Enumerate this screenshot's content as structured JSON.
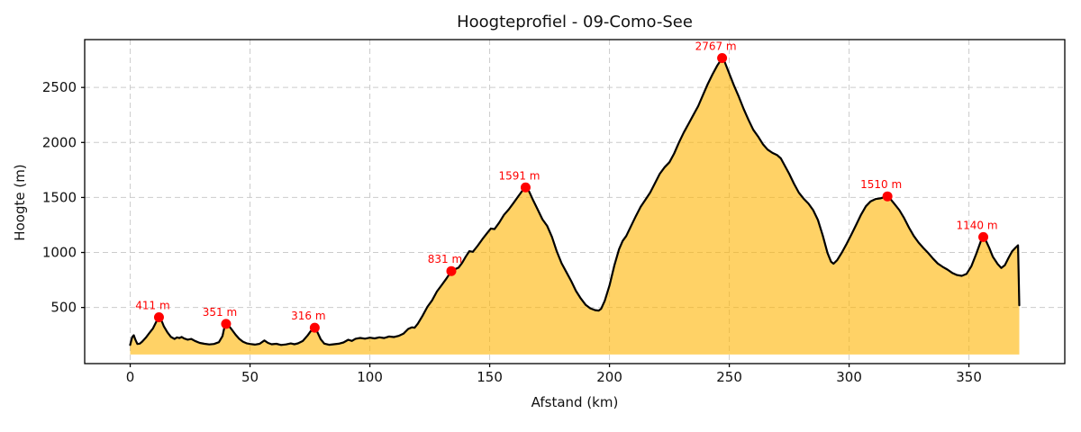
{
  "chart_data": {
    "type": "area",
    "title": "Hoogteprofiel - 09-Como-See",
    "xlabel": "Afstand (km)",
    "ylabel": "Hoogte (m)",
    "xlim": [
      -19,
      390
    ],
    "ylim": [
      -10,
      2935
    ],
    "x_ticks": [
      0,
      50,
      100,
      150,
      200,
      250,
      300,
      350
    ],
    "y_ticks": [
      500,
      1000,
      1500,
      2000,
      2500
    ],
    "grid": true,
    "legend": "none",
    "fill_baseline_m": 73,
    "colors": {
      "line": "#000000",
      "fill": "rgba(255,180,0,0.6)",
      "marker": "#ff0000",
      "peak_label": "#ff0000",
      "grid": "#cccccc",
      "frame": "#000000",
      "tick_text": "#111111"
    },
    "peaks": [
      {
        "km": 12,
        "m": 411,
        "label": "411 m"
      },
      {
        "km": 40,
        "m": 351,
        "label": "351 m"
      },
      {
        "km": 77,
        "m": 316,
        "label": "316 m"
      },
      {
        "km": 134,
        "m": 831,
        "label": "831 m"
      },
      {
        "km": 165,
        "m": 1591,
        "label": "1591 m"
      },
      {
        "km": 247,
        "m": 2767,
        "label": "2767 m"
      },
      {
        "km": 316,
        "m": 1510,
        "label": "1510 m"
      },
      {
        "km": 356,
        "m": 1140,
        "label": "1140 m"
      }
    ],
    "profile": [
      [
        0,
        160
      ],
      [
        0.8,
        230
      ],
      [
        1.5,
        248
      ],
      [
        2.2,
        205
      ],
      [
        3,
        168
      ],
      [
        4,
        172
      ],
      [
        5,
        190
      ],
      [
        6.5,
        225
      ],
      [
        8,
        268
      ],
      [
        9.5,
        310
      ],
      [
        11,
        375
      ],
      [
        12,
        411
      ],
      [
        13,
        385
      ],
      [
        14,
        330
      ],
      [
        15.5,
        275
      ],
      [
        17,
        232
      ],
      [
        18.5,
        214
      ],
      [
        19.5,
        228
      ],
      [
        20.5,
        222
      ],
      [
        21.5,
        232
      ],
      [
        22.5,
        218
      ],
      [
        24,
        208
      ],
      [
        25.5,
        214
      ],
      [
        27,
        196
      ],
      [
        29,
        178
      ],
      [
        31,
        170
      ],
      [
        33,
        164
      ],
      [
        35,
        168
      ],
      [
        37,
        185
      ],
      [
        38.5,
        240
      ],
      [
        39.4,
        330
      ],
      [
        40,
        351
      ],
      [
        41,
        338
      ],
      [
        42.5,
        296
      ],
      [
        44,
        252
      ],
      [
        45.5,
        215
      ],
      [
        47,
        190
      ],
      [
        48.5,
        175
      ],
      [
        50,
        168
      ],
      [
        52,
        163
      ],
      [
        54,
        170
      ],
      [
        56,
        200
      ],
      [
        57.5,
        178
      ],
      [
        59,
        166
      ],
      [
        61,
        170
      ],
      [
        63,
        159
      ],
      [
        65,
        164
      ],
      [
        67,
        173
      ],
      [
        68.5,
        166
      ],
      [
        70,
        174
      ],
      [
        72,
        195
      ],
      [
        74,
        245
      ],
      [
        75.5,
        290
      ],
      [
        77,
        316
      ],
      [
        78,
        282
      ],
      [
        79.5,
        212
      ],
      [
        81,
        172
      ],
      [
        83,
        161
      ],
      [
        85,
        166
      ],
      [
        87,
        171
      ],
      [
        89,
        182
      ],
      [
        91,
        207
      ],
      [
        92.5,
        196
      ],
      [
        94,
        216
      ],
      [
        96,
        223
      ],
      [
        98,
        217
      ],
      [
        100,
        226
      ],
      [
        102,
        219
      ],
      [
        104,
        229
      ],
      [
        106,
        222
      ],
      [
        108,
        236
      ],
      [
        110,
        231
      ],
      [
        112,
        242
      ],
      [
        114,
        262
      ],
      [
        116,
        305
      ],
      [
        117.5,
        320
      ],
      [
        118.7,
        316
      ],
      [
        120,
        352
      ],
      [
        122,
        425
      ],
      [
        124,
        505
      ],
      [
        126,
        565
      ],
      [
        128,
        645
      ],
      [
        130,
        705
      ],
      [
        132,
        765
      ],
      [
        134,
        831
      ],
      [
        135.5,
        848
      ],
      [
        137,
        862
      ],
      [
        138.5,
        905
      ],
      [
        140,
        962
      ],
      [
        141.5,
        1012
      ],
      [
        143,
        1006
      ],
      [
        145,
        1062
      ],
      [
        147,
        1122
      ],
      [
        149,
        1178
      ],
      [
        150.5,
        1218
      ],
      [
        152,
        1212
      ],
      [
        154,
        1272
      ],
      [
        156,
        1342
      ],
      [
        158,
        1392
      ],
      [
        160,
        1452
      ],
      [
        162,
        1512
      ],
      [
        164,
        1572
      ],
      [
        165,
        1591
      ],
      [
        166.5,
        1552
      ],
      [
        168,
        1482
      ],
      [
        170,
        1392
      ],
      [
        172,
        1302
      ],
      [
        174,
        1242
      ],
      [
        176,
        1142
      ],
      [
        178,
        1012
      ],
      [
        180,
        902
      ],
      [
        182,
        822
      ],
      [
        184,
        742
      ],
      [
        186,
        652
      ],
      [
        188,
        582
      ],
      [
        190,
        525
      ],
      [
        192,
        492
      ],
      [
        194,
        476
      ],
      [
        195.5,
        472
      ],
      [
        196.5,
        488
      ],
      [
        198,
        560
      ],
      [
        200,
        700
      ],
      [
        202,
        880
      ],
      [
        204,
        1030
      ],
      [
        205.5,
        1105
      ],
      [
        207,
        1150
      ],
      [
        209,
        1240
      ],
      [
        211,
        1330
      ],
      [
        213,
        1415
      ],
      [
        215,
        1480
      ],
      [
        217,
        1545
      ],
      [
        219,
        1630
      ],
      [
        221,
        1715
      ],
      [
        223,
        1775
      ],
      [
        225,
        1820
      ],
      [
        227,
        1900
      ],
      [
        229,
        2000
      ],
      [
        231,
        2090
      ],
      [
        233,
        2170
      ],
      [
        235,
        2250
      ],
      [
        237,
        2330
      ],
      [
        239,
        2430
      ],
      [
        241,
        2530
      ],
      [
        243,
        2620
      ],
      [
        245,
        2700
      ],
      [
        246.5,
        2750
      ],
      [
        247,
        2767
      ],
      [
        248,
        2735
      ],
      [
        250,
        2625
      ],
      [
        252,
        2515
      ],
      [
        254,
        2415
      ],
      [
        256,
        2305
      ],
      [
        258,
        2205
      ],
      [
        260,
        2115
      ],
      [
        262,
        2055
      ],
      [
        264,
        1985
      ],
      [
        266,
        1935
      ],
      [
        268,
        1905
      ],
      [
        270,
        1885
      ],
      [
        271.5,
        1855
      ],
      [
        273,
        1795
      ],
      [
        275,
        1715
      ],
      [
        277,
        1625
      ],
      [
        279,
        1545
      ],
      [
        281,
        1490
      ],
      [
        283,
        1445
      ],
      [
        285,
        1385
      ],
      [
        287,
        1295
      ],
      [
        289,
        1155
      ],
      [
        291,
        995
      ],
      [
        292.5,
        915
      ],
      [
        293.5,
        898
      ],
      [
        295,
        930
      ],
      [
        297,
        1000
      ],
      [
        299,
        1080
      ],
      [
        301,
        1165
      ],
      [
        303,
        1255
      ],
      [
        305,
        1345
      ],
      [
        307,
        1420
      ],
      [
        309,
        1465
      ],
      [
        311,
        1485
      ],
      [
        313,
        1492
      ],
      [
        315,
        1505
      ],
      [
        316,
        1510
      ],
      [
        317.5,
        1480
      ],
      [
        319,
        1440
      ],
      [
        321,
        1385
      ],
      [
        323,
        1310
      ],
      [
        325,
        1225
      ],
      [
        327,
        1150
      ],
      [
        329,
        1090
      ],
      [
        331,
        1040
      ],
      [
        333,
        995
      ],
      [
        335,
        945
      ],
      [
        337,
        900
      ],
      [
        339,
        870
      ],
      [
        341,
        845
      ],
      [
        343,
        815
      ],
      [
        345,
        795
      ],
      [
        347,
        788
      ],
      [
        349,
        805
      ],
      [
        351,
        875
      ],
      [
        353,
        985
      ],
      [
        355,
        1105
      ],
      [
        356,
        1140
      ],
      [
        357,
        1112
      ],
      [
        358.5,
        1040
      ],
      [
        360,
        960
      ],
      [
        362,
        895
      ],
      [
        363.5,
        860
      ],
      [
        365,
        885
      ],
      [
        366.5,
        950
      ],
      [
        368,
        1010
      ],
      [
        369.5,
        1045
      ],
      [
        370.5,
        1065
      ],
      [
        371,
        520
      ]
    ]
  }
}
